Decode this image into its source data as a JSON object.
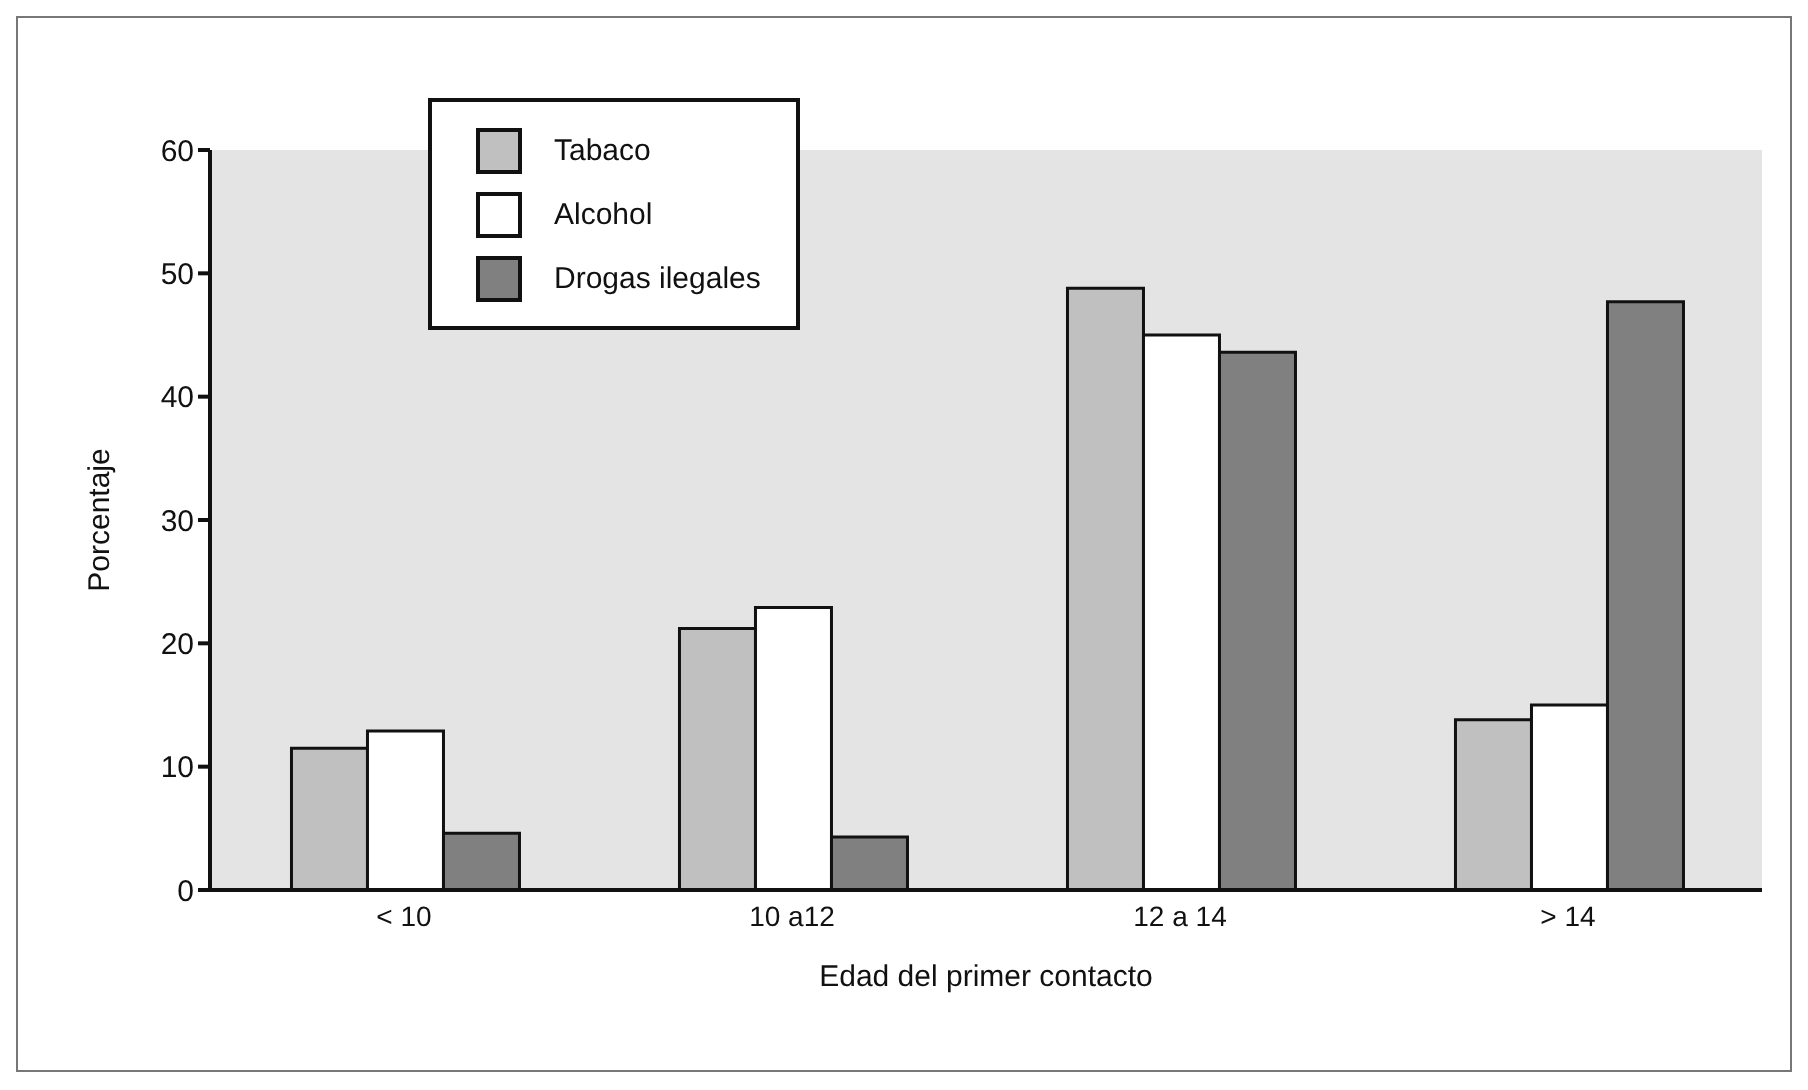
{
  "chart_data": {
    "type": "bar",
    "xlabel": "Edad del primer contacto",
    "ylabel": "Porcentaje",
    "categories": [
      "< 10",
      "10 a12",
      "12 a 14",
      "> 14"
    ],
    "series": [
      {
        "name": "Tabaco",
        "color": "#c0c0c0",
        "values": [
          11.5,
          21.2,
          48.8,
          13.8
        ]
      },
      {
        "name": "Alcohol",
        "color": "#ffffff",
        "values": [
          12.9,
          22.9,
          45.0,
          15.0
        ]
      },
      {
        "name": "Drogas ilegales",
        "color": "#808080",
        "values": [
          4.6,
          4.3,
          43.6,
          47.7
        ]
      }
    ],
    "ylim": [
      0,
      60
    ],
    "yticks": [
      0,
      10,
      20,
      30,
      40,
      50,
      60
    ],
    "grid": false,
    "legend": "top left"
  }
}
